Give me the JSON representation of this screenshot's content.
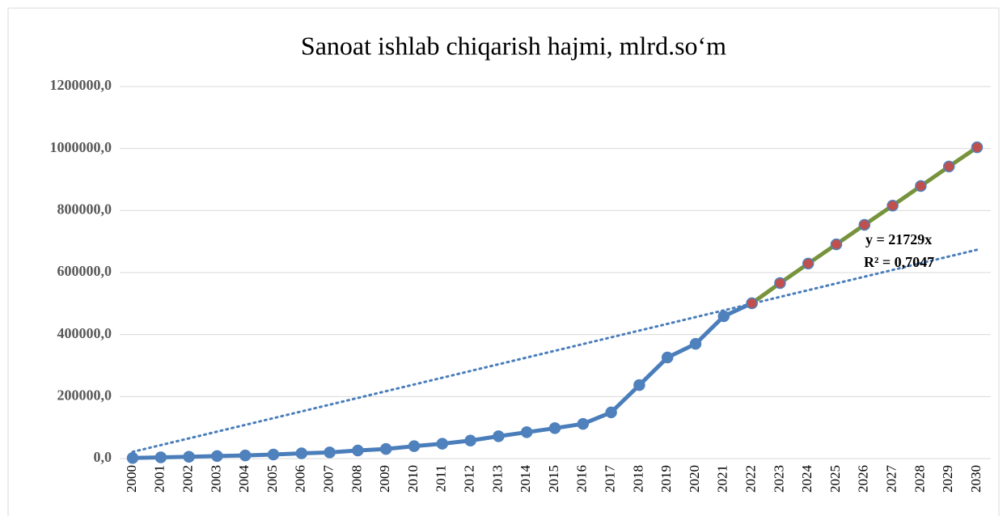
{
  "chart_data": {
    "type": "line",
    "title": "Sanoat ishlab chiqarish hajmi, mlrd.so‘m",
    "categories": [
      "2000",
      "2001",
      "2002",
      "2003",
      "2004",
      "2005",
      "2006",
      "2007",
      "2008",
      "2009",
      "2010",
      "2011",
      "2012",
      "2013",
      "2014",
      "2015",
      "2016",
      "2017",
      "2018",
      "2019",
      "2020",
      "2021",
      "2022",
      "2023",
      "2024",
      "2025",
      "2026",
      "2027",
      "2028",
      "2029",
      "2030"
    ],
    "series": [
      {
        "color": "#4a7ebb",
        "marker_color": "#4f81bd",
        "values": [
          2000,
          4000,
          6000,
          8000,
          10000,
          13000,
          17000,
          20000,
          26000,
          31000,
          40000,
          48000,
          58000,
          72000,
          85000,
          98000,
          112000,
          149000,
          237000,
          326000,
          370000,
          459000,
          501000,
          null,
          null,
          null,
          null,
          null,
          null,
          null,
          null
        ]
      },
      {
        "color": "#77933c",
        "marker_color": "#c0504d",
        "values": [
          null,
          null,
          null,
          null,
          null,
          null,
          null,
          null,
          null,
          null,
          null,
          null,
          null,
          null,
          null,
          null,
          null,
          null,
          null,
          null,
          null,
          null,
          501000,
          566000,
          629000,
          691000,
          754000,
          816000,
          879000,
          942000,
          1004000
        ]
      }
    ],
    "trendline": {
      "slope": 21729,
      "color": "#4a7ebb",
      "equation": "y = 21729x",
      "r_squared": "R² = 0,7047"
    },
    "ylim": [
      0,
      1200000
    ],
    "yticks": [
      {
        "value": 0,
        "label": "0,0"
      },
      {
        "value": 200000,
        "label": "200000,0"
      },
      {
        "value": 400000,
        "label": "400000,0"
      },
      {
        "value": 600000,
        "label": "600000,0"
      },
      {
        "value": 800000,
        "label": "800000,0"
      },
      {
        "value": 1000000,
        "label": "1000000,0"
      },
      {
        "value": 1200000,
        "label": "1200000,0"
      }
    ],
    "grid": true
  }
}
